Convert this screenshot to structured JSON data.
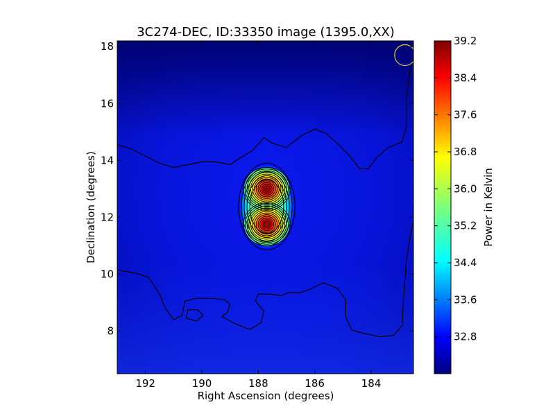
{
  "chart_data": {
    "type": "heatmap",
    "title": "3C274-DEC, ID:33350 image (1395.0,XX)",
    "xlabel": "Right Ascension (degrees)",
    "ylabel": "Declination (degrees)",
    "xlim": [
      193.0,
      182.5
    ],
    "ylim": [
      6.5,
      18.2
    ],
    "x_ticks": [
      192,
      190,
      188,
      186,
      184
    ],
    "y_ticks": [
      8,
      10,
      12,
      14,
      16,
      18
    ],
    "x_reversed": true,
    "colorbar": {
      "label": "Power in Kelvin",
      "range": [
        32.0,
        39.2
      ],
      "ticks": [
        39.2,
        38.4,
        37.6,
        36.8,
        36.0,
        35.2,
        34.4,
        33.6,
        32.8
      ],
      "colormap": "jet"
    },
    "sources": [
      {
        "ra": 187.7,
        "dec": 13.0,
        "peak_power": 39.1
      },
      {
        "ra": 187.7,
        "dec": 11.75,
        "peak_power": 39.1
      }
    ],
    "background_power": 33.0,
    "beam_marker": {
      "ra": 182.8,
      "dec": 17.7,
      "color": "#e0d020"
    },
    "contours": {
      "color": "#000000",
      "outer_level": {
        "upper_edge": [
          [
            193.0,
            14.55
          ],
          [
            192.5,
            14.4
          ],
          [
            191.5,
            13.9
          ],
          [
            191.0,
            13.75
          ],
          [
            190.5,
            13.85
          ],
          [
            190.0,
            13.95
          ],
          [
            189.5,
            13.95
          ],
          [
            189.0,
            13.85
          ],
          [
            188.7,
            14.05
          ],
          [
            188.2,
            14.35
          ],
          [
            187.8,
            14.8
          ],
          [
            187.5,
            14.6
          ],
          [
            187.0,
            14.45
          ],
          [
            186.5,
            14.85
          ],
          [
            186.0,
            15.1
          ],
          [
            185.6,
            14.95
          ],
          [
            185.2,
            14.6
          ],
          [
            184.8,
            14.2
          ],
          [
            184.4,
            13.7
          ],
          [
            184.1,
            13.7
          ],
          [
            183.8,
            14.1
          ],
          [
            183.4,
            14.45
          ],
          [
            182.9,
            14.65
          ],
          [
            182.75,
            15.2
          ],
          [
            182.75,
            16.2
          ],
          [
            182.6,
            17.3
          ],
          [
            182.5,
            17.6
          ]
        ],
        "lower_edge": [
          [
            193.0,
            10.15
          ],
          [
            192.4,
            10.05
          ],
          [
            191.9,
            9.9
          ],
          [
            191.5,
            9.3
          ],
          [
            191.3,
            8.8
          ],
          [
            191.0,
            8.4
          ],
          [
            190.7,
            8.55
          ],
          [
            190.6,
            9.05
          ],
          [
            190.2,
            9.15
          ],
          [
            189.6,
            9.15
          ],
          [
            189.2,
            9.1
          ],
          [
            189.0,
            8.95
          ],
          [
            189.1,
            8.65
          ],
          [
            189.3,
            8.5
          ],
          [
            188.8,
            8.25
          ],
          [
            188.3,
            8.05
          ],
          [
            187.9,
            8.3
          ],
          [
            187.8,
            8.7
          ],
          [
            188.1,
            9.05
          ],
          [
            188.0,
            9.3
          ],
          [
            187.6,
            9.3
          ],
          [
            187.2,
            9.25
          ],
          [
            186.9,
            9.35
          ],
          [
            186.5,
            9.35
          ],
          [
            186.1,
            9.5
          ],
          [
            185.7,
            9.7
          ],
          [
            185.2,
            9.5
          ],
          [
            184.9,
            9.1
          ],
          [
            184.9,
            8.5
          ],
          [
            184.7,
            8.05
          ],
          [
            184.4,
            7.95
          ],
          [
            183.7,
            7.8
          ],
          [
            183.2,
            7.85
          ],
          [
            182.9,
            8.2
          ],
          [
            182.85,
            9.2
          ],
          [
            182.75,
            10.5
          ],
          [
            182.6,
            11.4
          ],
          [
            182.5,
            11.9
          ]
        ],
        "island": [
          [
            190.5,
            8.75
          ],
          [
            190.15,
            8.75
          ],
          [
            189.95,
            8.55
          ],
          [
            190.2,
            8.35
          ],
          [
            190.55,
            8.45
          ]
        ]
      },
      "source_levels": 12
    }
  }
}
